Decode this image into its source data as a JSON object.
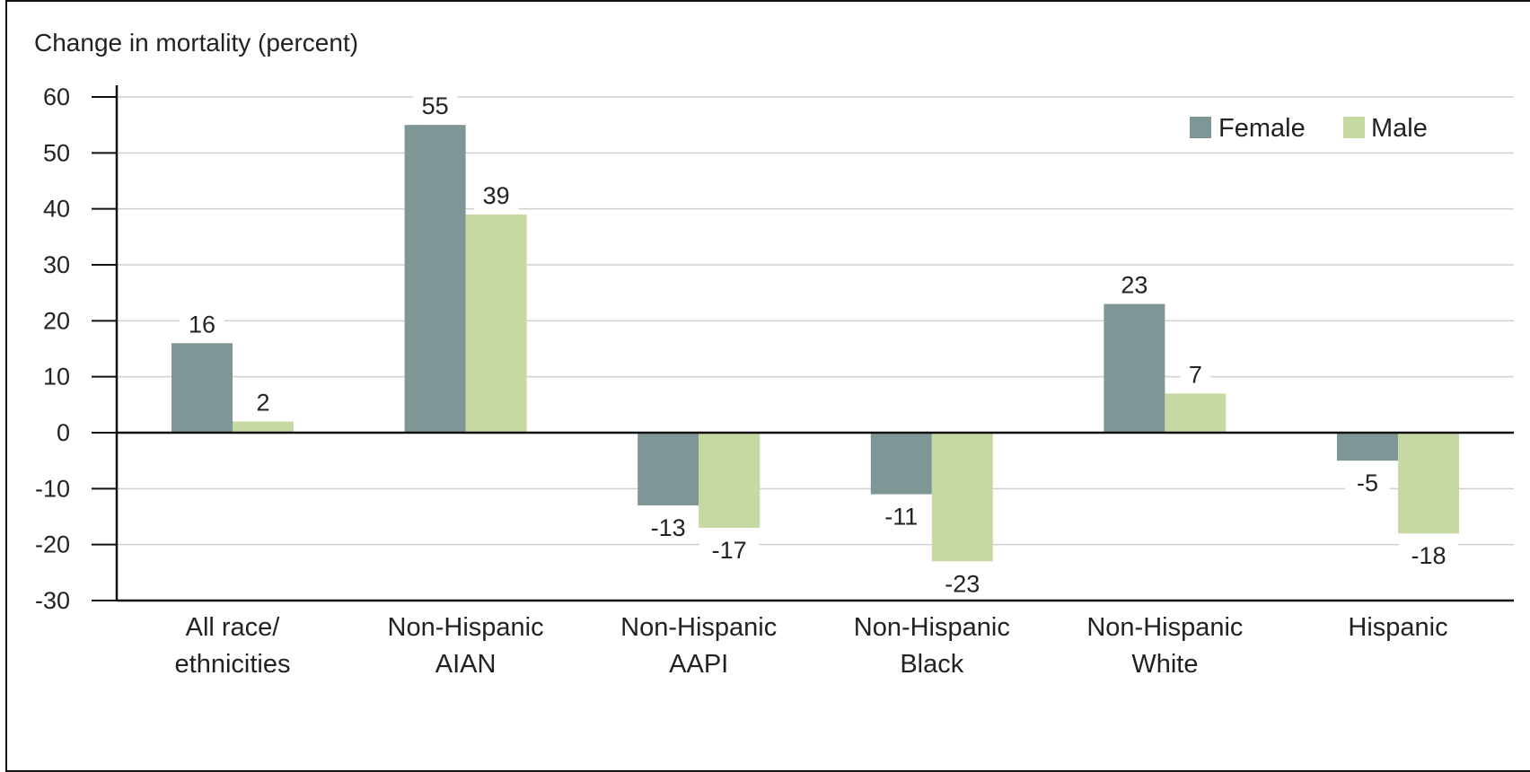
{
  "chart_data": {
    "type": "bar",
    "title": "",
    "ylabel": "Change in mortality (percent)",
    "xlabel": "",
    "ylim": [
      -30,
      60
    ],
    "yticks": [
      60,
      50,
      40,
      30,
      20,
      10,
      0,
      -10,
      -20,
      -30
    ],
    "grid": true,
    "legend_position": "top-right",
    "categories": [
      [
        "All race/",
        "ethnicities"
      ],
      [
        "Non-Hispanic",
        "AIAN"
      ],
      [
        "Non-Hispanic",
        "AAPI"
      ],
      [
        "Non-Hispanic",
        "Black"
      ],
      [
        "Non-Hispanic",
        "White"
      ],
      [
        "Hispanic"
      ]
    ],
    "series": [
      {
        "name": "Female",
        "color": "#7f9697",
        "values": [
          16,
          55,
          -13,
          -11,
          23,
          -5
        ]
      },
      {
        "name": "Male",
        "color": "#c7d9a2",
        "values": [
          2,
          39,
          -17,
          -23,
          7,
          -18
        ]
      }
    ],
    "data_labels": [
      [
        "16",
        "55",
        "-13",
        "-11",
        "23",
        "-5"
      ],
      [
        "2",
        "39",
        "-17",
        "-23",
        "7",
        "-18"
      ]
    ]
  }
}
